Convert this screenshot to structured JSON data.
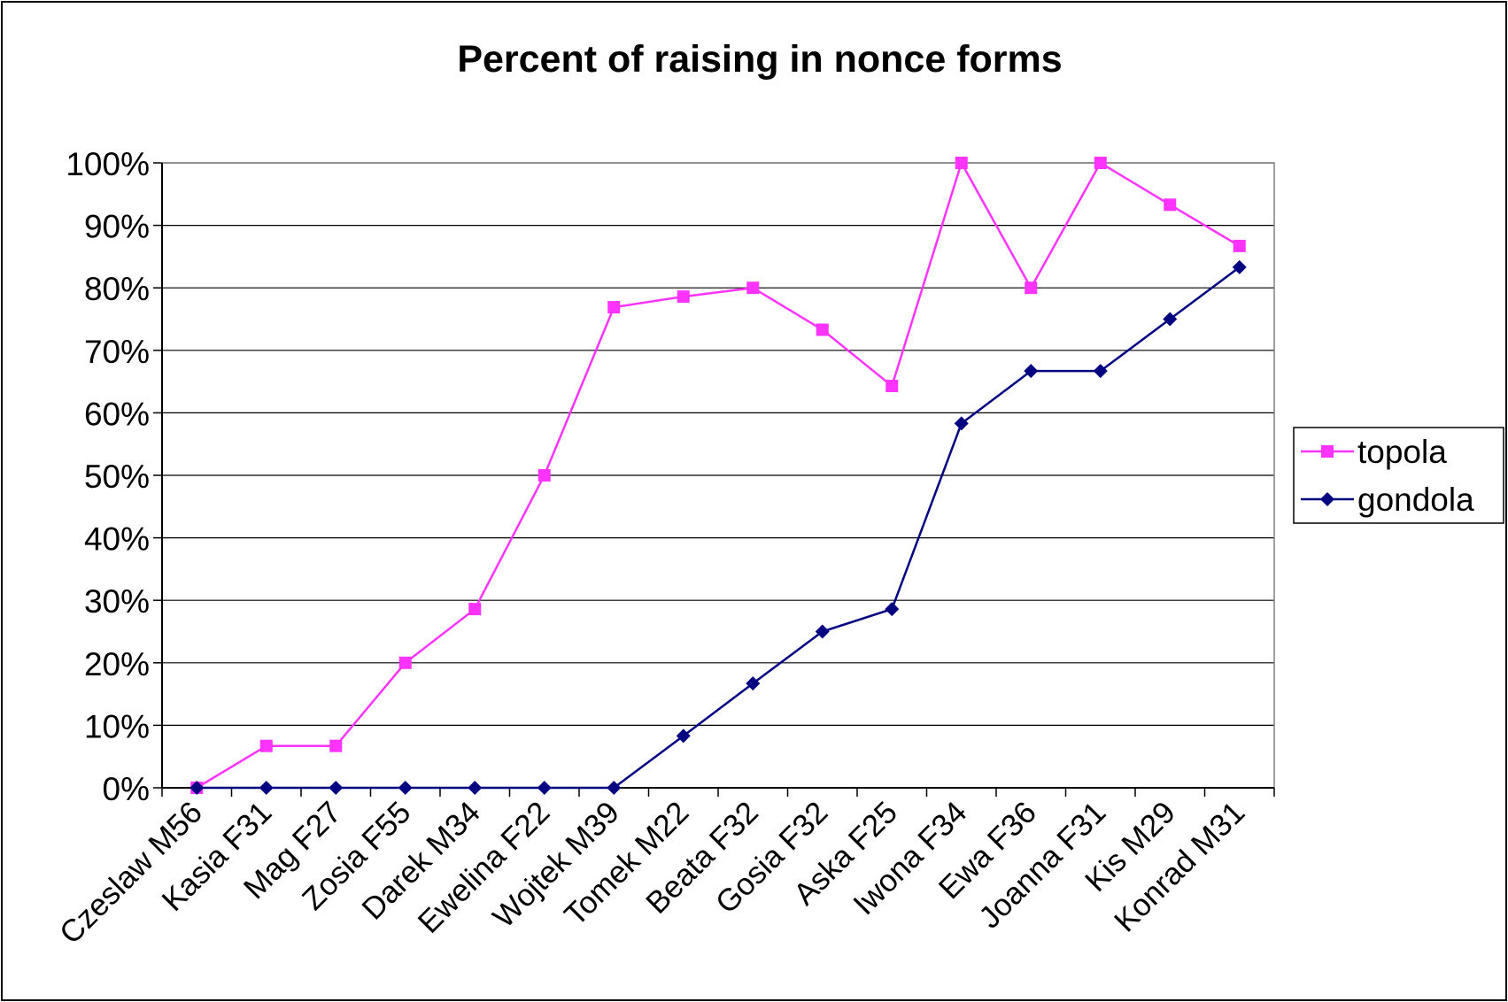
{
  "chart_data": {
    "type": "line",
    "title": "Percent of raising in nonce forms",
    "xlabel": "",
    "ylabel": "",
    "categories": [
      "Czeslaw M56",
      "Kasia F31",
      "Mag F27",
      "Zosia F55",
      "Darek M34",
      "Ewelina F22",
      "Wojtek M39",
      "Tomek M22",
      "Beata F32",
      "Gosia F32",
      "Aska F25",
      "Iwona F34",
      "Ewa F36",
      "Joanna F31",
      "Kis M29",
      "Konrad M31"
    ],
    "series": [
      {
        "name": "topola",
        "color": "#FF33FF",
        "marker": "square",
        "values": [
          0,
          6.7,
          6.7,
          20,
          28.6,
          50,
          76.9,
          78.6,
          80,
          73.3,
          64.3,
          100,
          80,
          100,
          93.3,
          86.7
        ]
      },
      {
        "name": "gondola",
        "color": "#000080",
        "marker": "diamond",
        "values": [
          0,
          0,
          0,
          0,
          0,
          0,
          0,
          8.3,
          16.7,
          25,
          28.6,
          58.3,
          66.7,
          66.7,
          75,
          83.3
        ]
      }
    ],
    "ylim": [
      0,
      100
    ],
    "yticks": [
      "0%",
      "10%",
      "20%",
      "30%",
      "40%",
      "50%",
      "60%",
      "70%",
      "80%",
      "90%",
      "100%"
    ],
    "grid": true,
    "legend": "right"
  }
}
